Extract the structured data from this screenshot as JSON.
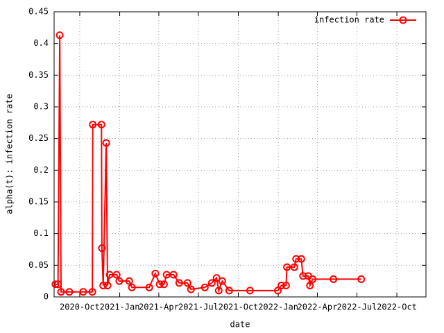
{
  "chart_data": {
    "type": "line",
    "xlabel": "date",
    "ylabel": "alpha(t): infection rate",
    "x": [
      "2020-08-06",
      "2020-08-12",
      "2020-08-16",
      "2020-08-19",
      "2020-09-07",
      "2020-10-09",
      "2020-10-30",
      "2020-10-31",
      "2020-11-20",
      "2020-11-21",
      "2020-11-24",
      "2020-12-01",
      "2020-12-04",
      "2020-12-09",
      "2020-12-25",
      "2020-12-31",
      "2021-01-23",
      "2021-01-29",
      "2021-03-10",
      "2021-03-24",
      "2021-04-03",
      "2021-04-13",
      "2021-04-19",
      "2021-05-05",
      "2021-05-18",
      "2021-06-06",
      "2021-06-14",
      "2021-07-16",
      "2021-08-01",
      "2021-08-12",
      "2021-08-17",
      "2021-08-25",
      "2021-09-10",
      "2021-10-28",
      "2021-12-31",
      "2022-01-08",
      "2022-01-19",
      "2022-01-21",
      "2022-02-07",
      "2022-02-11",
      "2022-02-23",
      "2022-02-27",
      "2022-03-11",
      "2022-03-15",
      "2022-03-21",
      "2022-05-08",
      "2022-07-11"
    ],
    "series": [
      {
        "name": "infection rate",
        "color": "#ff0000",
        "values": [
          0.02,
          0.02,
          0.413,
          0.008,
          0.008,
          0.008,
          0.008,
          0.272,
          0.272,
          0.077,
          0.018,
          0.243,
          0.018,
          0.035,
          0.035,
          0.025,
          0.025,
          0.015,
          0.015,
          0.037,
          0.02,
          0.02,
          0.035,
          0.035,
          0.022,
          0.022,
          0.012,
          0.015,
          0.022,
          0.03,
          0.01,
          0.025,
          0.01,
          0.01,
          0.01,
          0.018,
          0.018,
          0.047,
          0.047,
          0.06,
          0.06,
          0.033,
          0.033,
          0.018,
          0.028,
          0.028,
          0.028
        ]
      }
    ],
    "xlim": [
      "2020-08-03",
      "2022-12-07"
    ],
    "xticks": [
      {
        "value": "2020-10-01",
        "label": "2020-Oct"
      },
      {
        "value": "2021-01-01",
        "label": "2021-Jan"
      },
      {
        "value": "2021-04-01",
        "label": "2021-Apr"
      },
      {
        "value": "2021-07-01",
        "label": "2021-Jul"
      },
      {
        "value": "2021-10-01",
        "label": "2021-Oct"
      },
      {
        "value": "2022-01-01",
        "label": "2022-Jan"
      },
      {
        "value": "2022-04-01",
        "label": "2022-Apr"
      },
      {
        "value": "2022-07-01",
        "label": "2022-Jul"
      },
      {
        "value": "2022-10-01",
        "label": "2022-Oct"
      }
    ],
    "ylim": [
      0,
      0.45
    ],
    "yticks": [
      0,
      0.05,
      0.1,
      0.15,
      0.2,
      0.25,
      0.3,
      0.35,
      0.4,
      0.45
    ],
    "grid": true,
    "legend": "top-right"
  }
}
